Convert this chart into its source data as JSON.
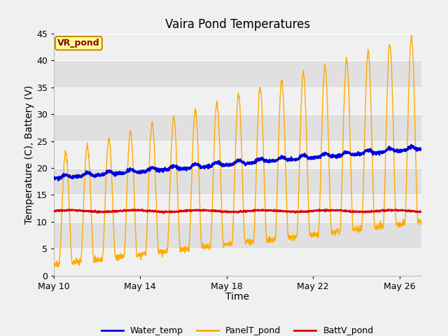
{
  "title": "Vaira Pond Temperatures",
  "xlabel": "Time",
  "ylabel": "Temperature (C), Battery (V)",
  "ylim": [
    0,
    45
  ],
  "n_days": 17,
  "x_ticks_labels": [
    "May 10",
    "May 14",
    "May 18",
    "May 22",
    "May 26"
  ],
  "x_ticks_days": [
    0,
    4,
    8,
    12,
    16
  ],
  "water_temp_color": "#0000dd",
  "panel_temp_color": "#ffaa00",
  "batt_color": "#dd0000",
  "figure_facecolor": "#f0f0f0",
  "plot_facecolor": "#e8e8e8",
  "annotation_label": "VR_pond",
  "annotation_fg": "#8B0000",
  "annotation_bg": "#ffff99",
  "annotation_border": "#cc8800",
  "grid_color": "#ffffff",
  "band_color_light": "#f0f0f0",
  "band_color_dark": "#e0e0e0",
  "title_fontsize": 12,
  "axis_fontsize": 10,
  "tick_fontsize": 9
}
